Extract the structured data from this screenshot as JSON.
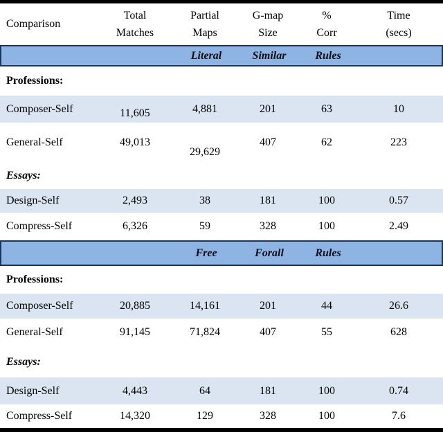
{
  "table": {
    "header": {
      "comparison": "Comparison",
      "cols": [
        {
          "l1": "Total",
          "l2": "Matches"
        },
        {
          "l1": "Partial",
          "l2": "Maps"
        },
        {
          "l1": "G-map",
          "l2": "Size"
        },
        {
          "l1": "%",
          "l2": "Corr"
        },
        {
          "l1": "Time",
          "l2": "(secs)"
        }
      ]
    },
    "sections": [
      {
        "band": [
          "Literal",
          "Similar",
          "Rules"
        ],
        "professions_label": "Professions:",
        "essays_label": "Essays:",
        "rows": [
          {
            "label": "Composer-Self",
            "values": [
              "11,605",
              "4,881",
              "201",
              "63",
              "10"
            ]
          },
          {
            "label": "General-Self",
            "values": [
              "49,013",
              "29,629",
              "407",
              "62",
              "223"
            ]
          },
          {
            "label": "Design-Self",
            "values": [
              "2,493",
              "38",
              "181",
              "100",
              "0.57"
            ]
          },
          {
            "label": "Compress-Self",
            "values": [
              "6,326",
              "59",
              "328",
              "100",
              "2.49"
            ]
          }
        ]
      },
      {
        "band": [
          "Free",
          "Forall",
          "Rules"
        ],
        "professions_label": "Professions:",
        "essays_label": "Essays:",
        "rows": [
          {
            "label": "Composer-Self",
            "values": [
              "20,885",
              "14,161",
              "201",
              "44",
              "26.6"
            ]
          },
          {
            "label": "General-Self",
            "values": [
              "91,145",
              "71,824",
              "407",
              "55",
              "628"
            ]
          },
          {
            "label": "Design-Self",
            "values": [
              "4,443",
              "64",
              "181",
              "100",
              "0.74"
            ]
          },
          {
            "label": "Compress-Self",
            "values": [
              "14,320",
              "129",
              "328",
              "100",
              "7.6"
            ]
          }
        ]
      }
    ],
    "colors": {
      "band_fill": "#8db4e2",
      "band_border": "#17365d",
      "alt_row_fill": "#dbe5f1",
      "frame": "#000000"
    }
  }
}
